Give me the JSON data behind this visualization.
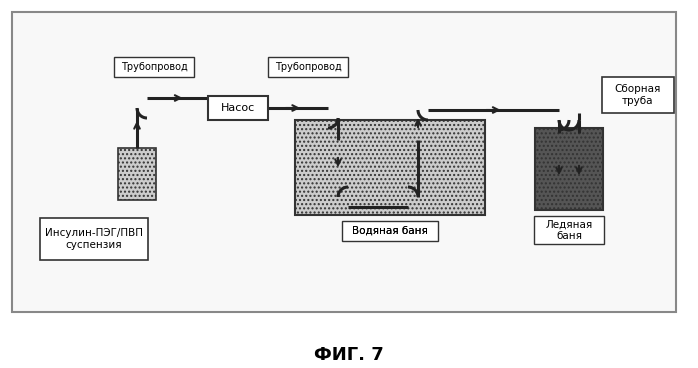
{
  "title": "ФИГ. 7",
  "bg_color": "#ffffff",
  "label_insulin": "Инсулин-ПЭГ/ПВП\nсуспензия",
  "label_water_bath": "Водяная баня",
  "label_ice_bath": "Ледяная\nбаня",
  "label_collect_tube": "Сборная\nтруба",
  "label_pump": "Насос",
  "label_pipe1": "Трубопровод",
  "label_pipe2": "Трубопровод"
}
